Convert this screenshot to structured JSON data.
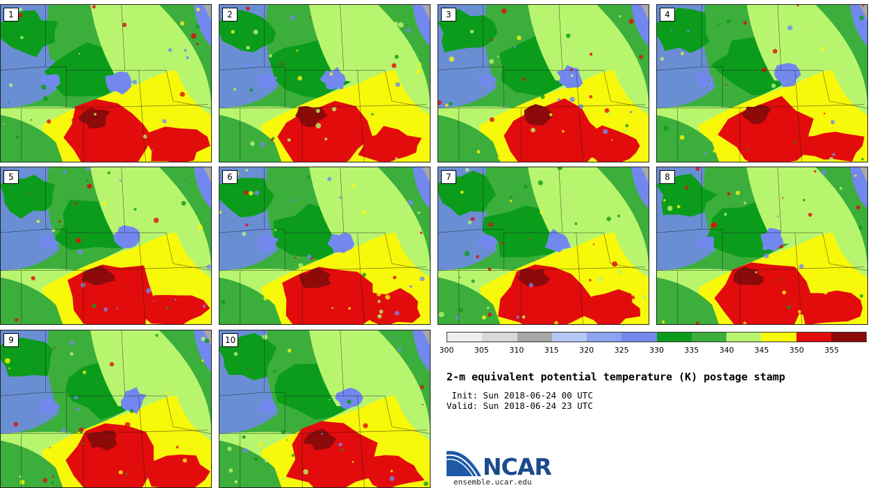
{
  "panels": [
    {
      "label": "1"
    },
    {
      "label": "2"
    },
    {
      "label": "3"
    },
    {
      "label": "4"
    },
    {
      "label": "5"
    },
    {
      "label": "6"
    },
    {
      "label": "7"
    },
    {
      "label": "8"
    },
    {
      "label": "9"
    },
    {
      "label": "10"
    }
  ],
  "colorbar": {
    "colors": [
      "#eeeeee",
      "#d8d8d8",
      "#a8a8a8",
      "#b4c6f5",
      "#8ca3f0",
      "#7288ee",
      "#0c9c1c",
      "#3cae3c",
      "#b8f56e",
      "#f8f80a",
      "#e20c0c",
      "#8c0a0a"
    ],
    "ticks": [
      "300",
      "305",
      "310",
      "315",
      "320",
      "325",
      "330",
      "335",
      "340",
      "345",
      "350",
      "355"
    ]
  },
  "title": "2-m equivalent potential temperature (K) postage stamp",
  "init": " Init: Sun 2018-06-24 00 UTC",
  "valid": "Valid: Sun 2018-06-24 23 UTC",
  "logo": {
    "text": "NCAR",
    "url": "ensemble.ucar.edu"
  }
}
